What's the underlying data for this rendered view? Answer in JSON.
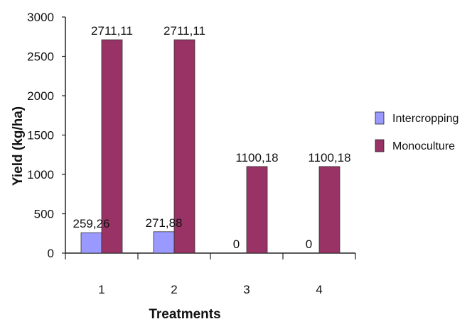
{
  "chart_data": {
    "type": "bar",
    "title": "",
    "xlabel": "Treatments",
    "ylabel": "Yield (kg/ha)",
    "categories": [
      "1",
      "2",
      "3",
      "4"
    ],
    "ylim": [
      0,
      3000
    ],
    "yticks": [
      "0",
      "500",
      "1000",
      "1500",
      "2000",
      "2500",
      "3000"
    ],
    "series": [
      {
        "name": "Intercropping",
        "color": "#9999ff",
        "values": [
          259.26,
          271.88,
          0,
          0
        ],
        "labels": [
          "259,26",
          "271,88",
          "0",
          "0"
        ]
      },
      {
        "name": "Monoculture",
        "color": "#993366",
        "values": [
          2711.11,
          2711.11,
          1100.18,
          1100.18
        ],
        "labels": [
          "2711,11",
          "2711,11",
          "1100,18",
          "1100,18"
        ]
      }
    ],
    "grid": false,
    "legend": "right"
  }
}
